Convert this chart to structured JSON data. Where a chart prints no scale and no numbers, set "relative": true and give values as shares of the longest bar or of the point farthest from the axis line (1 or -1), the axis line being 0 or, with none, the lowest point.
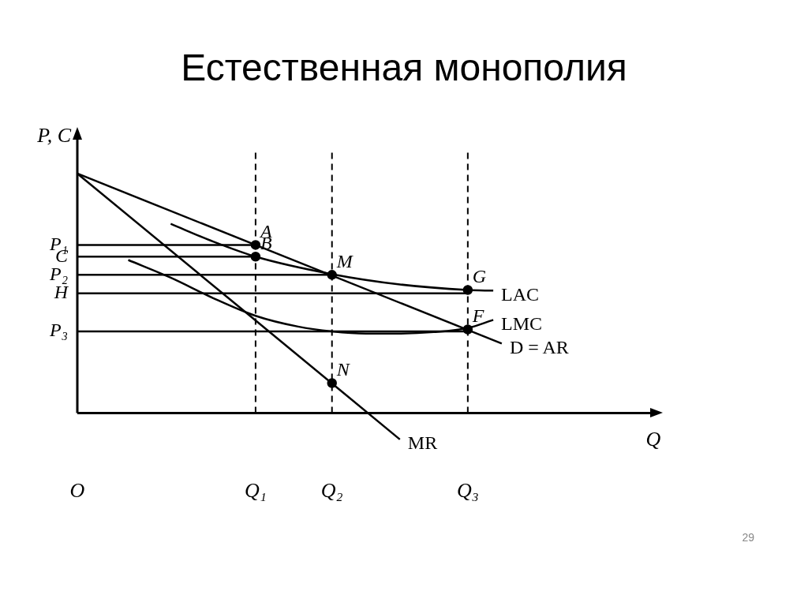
{
  "chart_data": {
    "type": "line",
    "title": "Естественная монополия",
    "xlabel": "Q",
    "ylabel": "P, C",
    "relative": true,
    "legend": false,
    "grid": false,
    "marker": "none",
    "categories": [
      "O",
      null,
      null,
      null,
      null,
      null,
      null,
      null,
      null,
      null,
      null,
      null,
      null,
      null,
      null,
      null,
      null,
      null,
      null,
      null,
      null,
      "Q₁",
      null,
      null,
      null,
      null,
      null,
      null,
      null,
      null,
      "Q₂",
      null,
      null,
      null,
      null,
      null,
      null,
      null,
      null,
      null,
      null,
      null,
      null,
      null,
      null,
      null,
      "Q₃",
      null,
      null,
      null,
      null,
      null,
      null,
      null,
      null,
      null,
      null,
      null,
      null,
      null,
      null,
      null,
      null,
      null,
      null,
      null,
      null
    ],
    "series": [
      {
        "name": "D = AR",
        "color": "#000000",
        "values": [
          1,
          null,
          null,
          null,
          null,
          null,
          null,
          null,
          null,
          null,
          null,
          null,
          null,
          null,
          null,
          null,
          null,
          null,
          null,
          null,
          null,
          null,
          null,
          null,
          null,
          null,
          null,
          null,
          null,
          null,
          null,
          null,
          null,
          null,
          null,
          null,
          null,
          null,
          null,
          null,
          null,
          null,
          null,
          null,
          null,
          null,
          null,
          null,
          null,
          null,
          0.29,
          null,
          null,
          null,
          null,
          null,
          null,
          null,
          null,
          null,
          null,
          null,
          null,
          null,
          null,
          null,
          null
        ]
      },
      {
        "name": "MR",
        "color": "#000000",
        "values": [
          1,
          null,
          null,
          null,
          null,
          null,
          null,
          null,
          null,
          null,
          null,
          null,
          null,
          null,
          null,
          null,
          null,
          null,
          null,
          null,
          null,
          null,
          null,
          null,
          null,
          null,
          null,
          null,
          null,
          null,
          null,
          null,
          null,
          null,
          null,
          null,
          null,
          null,
          -0.11,
          null,
          null,
          null,
          null,
          null,
          null,
          null,
          null,
          null,
          null,
          null,
          null,
          null,
          null,
          null,
          null,
          null,
          null,
          null,
          null,
          null,
          null,
          null,
          null,
          null,
          null,
          null,
          null
        ]
      },
      {
        "name": "LAC",
        "color": "#000000",
        "values": [
          null,
          null,
          null,
          null,
          null,
          null,
          null,
          null,
          null,
          null,
          null,
          0.79,
          null,
          null,
          null,
          null,
          0.716,
          null,
          null,
          null,
          null,
          0.653,
          null,
          null,
          null,
          null,
          null,
          null,
          null,
          null,
          0.58,
          null,
          null,
          null,
          null,
          null,
          null,
          null,
          0.537,
          null,
          null,
          null,
          null,
          null,
          null,
          null,
          0.514,
          null,
          null,
          0.511,
          null,
          null,
          null,
          null,
          null,
          null,
          null,
          null,
          null,
          null,
          null,
          null,
          null,
          null,
          null,
          null,
          null
        ]
      },
      {
        "name": "LMC",
        "color": "#000000",
        "values": [
          null,
          null,
          null,
          null,
          null,
          null,
          0.639,
          null,
          null,
          null,
          null,
          0.565,
          null,
          null,
          null,
          null,
          0.48,
          null,
          null,
          null,
          null,
          0.406,
          null,
          null,
          null,
          null,
          0.361,
          null,
          null,
          null,
          0.341,
          null,
          null,
          null,
          0.332,
          null,
          null,
          null,
          0.332,
          null,
          null,
          null,
          0.338,
          null,
          null,
          null,
          0.355,
          null,
          null,
          0.389,
          null,
          null,
          null,
          null,
          null,
          null,
          null,
          null,
          null,
          null,
          null,
          null,
          null,
          null,
          null,
          null,
          null
        ]
      },
      {
        "name": "P₁",
        "color": "#000000",
        "values": [
          0.702,
          null,
          null,
          null,
          null,
          null,
          null,
          null,
          null,
          null,
          null,
          null,
          null,
          null,
          null,
          null,
          null,
          null,
          null,
          null,
          null,
          0.702,
          null,
          null,
          null,
          null,
          null,
          null,
          null,
          null,
          null,
          null,
          null,
          null,
          null,
          null,
          null,
          null,
          null,
          null,
          null,
          null,
          null,
          null,
          null,
          null,
          null,
          null,
          null,
          null,
          null,
          null,
          null,
          null,
          null,
          null,
          null,
          null,
          null,
          null,
          null,
          null,
          null,
          null,
          null,
          null,
          null
        ]
      },
      {
        "name": "C",
        "color": "#000000",
        "values": [
          0.653,
          null,
          null,
          null,
          null,
          null,
          null,
          null,
          null,
          null,
          null,
          null,
          null,
          null,
          null,
          null,
          null,
          null,
          null,
          null,
          null,
          0.653,
          null,
          null,
          null,
          null,
          null,
          null,
          null,
          null,
          null,
          null,
          null,
          null,
          null,
          null,
          null,
          null,
          null,
          null,
          null,
          null,
          null,
          null,
          null,
          null,
          null,
          null,
          null,
          null,
          null,
          null,
          null,
          null,
          null,
          null,
          null,
          null,
          null,
          null,
          null,
          null,
          null,
          null,
          null,
          null,
          null
        ]
      },
      {
        "name": "P₂",
        "color": "#000000",
        "values": [
          0.577,
          null,
          null,
          null,
          null,
          null,
          null,
          null,
          null,
          null,
          null,
          null,
          null,
          null,
          null,
          null,
          null,
          null,
          null,
          null,
          null,
          null,
          null,
          null,
          null,
          null,
          null,
          null,
          null,
          null,
          0.577,
          null,
          null,
          null,
          null,
          null,
          null,
          null,
          null,
          null,
          null,
          null,
          null,
          null,
          null,
          null,
          null,
          null,
          null,
          null,
          null,
          null,
          null,
          null,
          null,
          null,
          null,
          null,
          null,
          null,
          null,
          null,
          null,
          null,
          null,
          null,
          null
        ]
      },
      {
        "name": "H",
        "color": "#000000",
        "values": [
          0.5,
          null,
          null,
          null,
          null,
          null,
          null,
          null,
          null,
          null,
          null,
          null,
          null,
          null,
          null,
          null,
          null,
          null,
          null,
          null,
          null,
          null,
          null,
          null,
          null,
          null,
          null,
          null,
          null,
          null,
          null,
          null,
          null,
          null,
          null,
          null,
          null,
          null,
          null,
          null,
          null,
          null,
          null,
          null,
          null,
          null,
          0.5,
          null,
          null,
          null,
          null,
          null,
          null,
          null,
          null,
          null,
          null,
          null,
          null,
          null,
          null,
          null,
          null,
          null,
          null,
          null,
          null
        ]
      },
      {
        "name": "P₃",
        "color": "#000000",
        "values": [
          0.341,
          null,
          null,
          null,
          null,
          null,
          null,
          null,
          null,
          null,
          null,
          null,
          null,
          null,
          null,
          null,
          null,
          null,
          null,
          null,
          null,
          null,
          null,
          null,
          null,
          null,
          null,
          null,
          null,
          null,
          null,
          null,
          null,
          null,
          null,
          null,
          null,
          null,
          null,
          null,
          null,
          null,
          null,
          null,
          null,
          null,
          0.341,
          null,
          null,
          null,
          null,
          null,
          null,
          null,
          null,
          null,
          null,
          null,
          null,
          null,
          null,
          null,
          null,
          null,
          null,
          null,
          null
        ]
      },
      {
        "type": "scatter",
        "marker": "circle",
        "color": "#000000",
        "x": [
          "Q₁",
          "Q₁",
          "Q₂",
          "Q₃",
          "Q₃",
          "Q₂"
        ],
        "values": [
          0.702,
          0.653,
          0.577,
          0.514,
          0.349,
          0.125
        ]
      }
    ],
    "ref_lines": [
      {
        "axis": "x",
        "value": "Q₁",
        "line_style": "dashed"
      },
      {
        "axis": "x",
        "value": "Q₂",
        "line_style": "dashed"
      },
      {
        "axis": "x",
        "value": "Q₃",
        "line_style": "dashed"
      }
    ],
    "annotations": [
      {
        "text": "A",
        "x": "Q₁",
        "y": 0.702
      },
      {
        "text": "B",
        "x": "Q₁",
        "y": 0.653
      },
      {
        "text": "M",
        "x": "Q₂",
        "y": 0.577
      },
      {
        "text": "G",
        "x": "Q₃",
        "y": 0.514
      },
      {
        "text": "F",
        "x": "Q₃",
        "y": 0.349
      },
      {
        "text": "N",
        "x": "Q₂",
        "y": 0.125
      },
      "29"
    ]
  }
}
